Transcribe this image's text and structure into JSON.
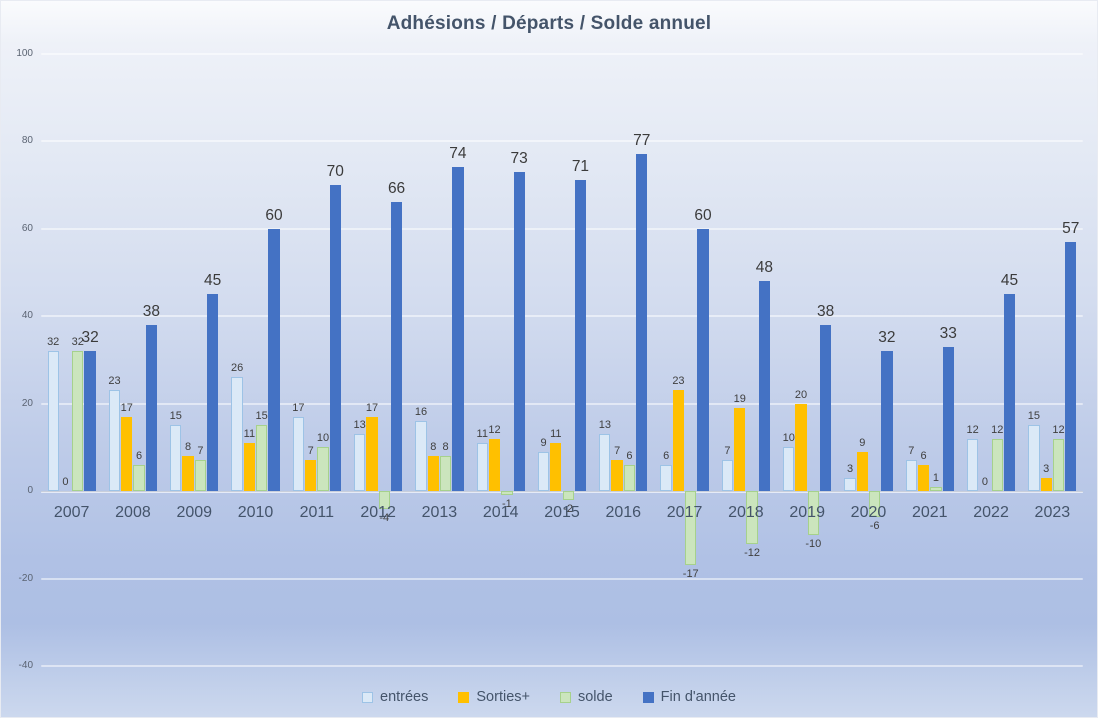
{
  "chart_data": {
    "type": "bar",
    "title": "Adhésions / Départs / Solde annuel",
    "categories": [
      "2007",
      "2008",
      "2009",
      "2010",
      "2011",
      "2012",
      "2013",
      "2014",
      "2015",
      "2016",
      "2017",
      "2018",
      "2019",
      "2020",
      "2021",
      "2022",
      "2023"
    ],
    "series": [
      {
        "name": "entrées",
        "key": "entrees",
        "fill": "#dbe9f7",
        "border": "#9dc3e6",
        "values": [
          32,
          23,
          15,
          26,
          17,
          13,
          16,
          11,
          9,
          13,
          6,
          7,
          10,
          3,
          7,
          12,
          15
        ]
      },
      {
        "name": "Sorties+",
        "key": "sorties",
        "fill": "#ffc000",
        "border": "#ffc000",
        "values": [
          0,
          17,
          8,
          11,
          7,
          17,
          8,
          12,
          11,
          7,
          23,
          19,
          20,
          9,
          6,
          0,
          3
        ]
      },
      {
        "name": "solde",
        "key": "solde",
        "fill": "#cbe5bd",
        "border": "#a6d18c",
        "values": [
          32,
          6,
          7,
          15,
          10,
          -4,
          8,
          -1,
          -2,
          6,
          -17,
          -12,
          -10,
          -6,
          1,
          12,
          12
        ]
      },
      {
        "name": "Fin d'année",
        "key": "fin",
        "fill": "#4472c4",
        "border": "#4472c4",
        "values": [
          32,
          38,
          45,
          60,
          70,
          66,
          74,
          73,
          71,
          77,
          60,
          48,
          38,
          32,
          33,
          45,
          57
        ]
      }
    ],
    "y_axis": {
      "min": -40,
      "max": 100,
      "ticks": [
        100,
        80,
        60,
        40,
        20,
        0,
        -20,
        -40
      ]
    },
    "xlabel": "",
    "ylabel": "",
    "grid": true,
    "legend_position": "bottom",
    "legend": [
      "entrées",
      "Sorties+",
      "solde",
      "Fin d'année"
    ]
  }
}
